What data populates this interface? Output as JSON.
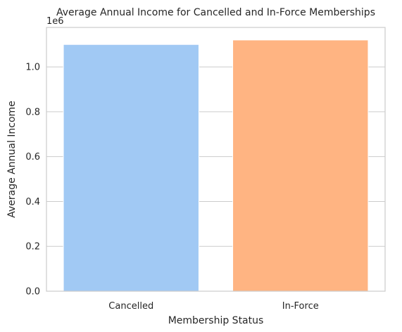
{
  "chart_data": {
    "type": "bar",
    "title": "Average Annual Income for Cancelled and In-Force Memberships",
    "xlabel": "Membership Status",
    "ylabel": "Average Annual Income",
    "axis_offset_label": "1e6",
    "categories": [
      "Cancelled",
      "In-Force"
    ],
    "values": [
      1100000,
      1120000
    ],
    "colors": [
      "#a1c9f4",
      "#ffb482"
    ],
    "ylim": [
      0,
      1176000
    ],
    "yticks": [
      0,
      200000,
      400000,
      600000,
      800000,
      1000000
    ],
    "ytick_labels": [
      "0.0",
      "0.2",
      "0.4",
      "0.6",
      "0.8",
      "1.0"
    ],
    "grid": true
  }
}
